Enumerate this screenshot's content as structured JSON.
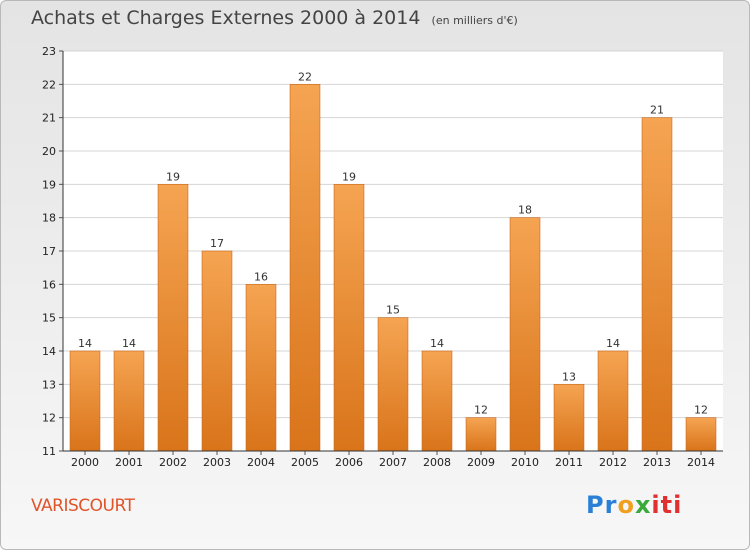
{
  "header": {
    "title": "Achats et Charges Externes 2000 à 2014",
    "unit": "(en milliers d'€)"
  },
  "footer": {
    "commune": "VARISCOURT",
    "brand_parts": [
      "Pr",
      "o",
      "x",
      "iti"
    ]
  },
  "colors": {
    "bar_light": "#f5a452",
    "bar_dark": "#d9741a",
    "commune_text": "#e0542a"
  },
  "chart_data": {
    "type": "bar",
    "title": "Achats et Charges Externes 2000 à 2014",
    "subtitle": "(en milliers d'€)",
    "xlabel": "",
    "ylabel": "",
    "categories": [
      "2000",
      "2001",
      "2002",
      "2003",
      "2004",
      "2005",
      "2006",
      "2007",
      "2008",
      "2009",
      "2010",
      "2011",
      "2012",
      "2013",
      "2014"
    ],
    "values": [
      14,
      14,
      19,
      17,
      16,
      22,
      19,
      15,
      14,
      12,
      18,
      13,
      14,
      21,
      12
    ],
    "ylim": [
      11,
      23
    ],
    "yticks": [
      11,
      12,
      13,
      14,
      15,
      16,
      17,
      18,
      19,
      20,
      21,
      22,
      23
    ],
    "grid": true,
    "legend": "none"
  }
}
